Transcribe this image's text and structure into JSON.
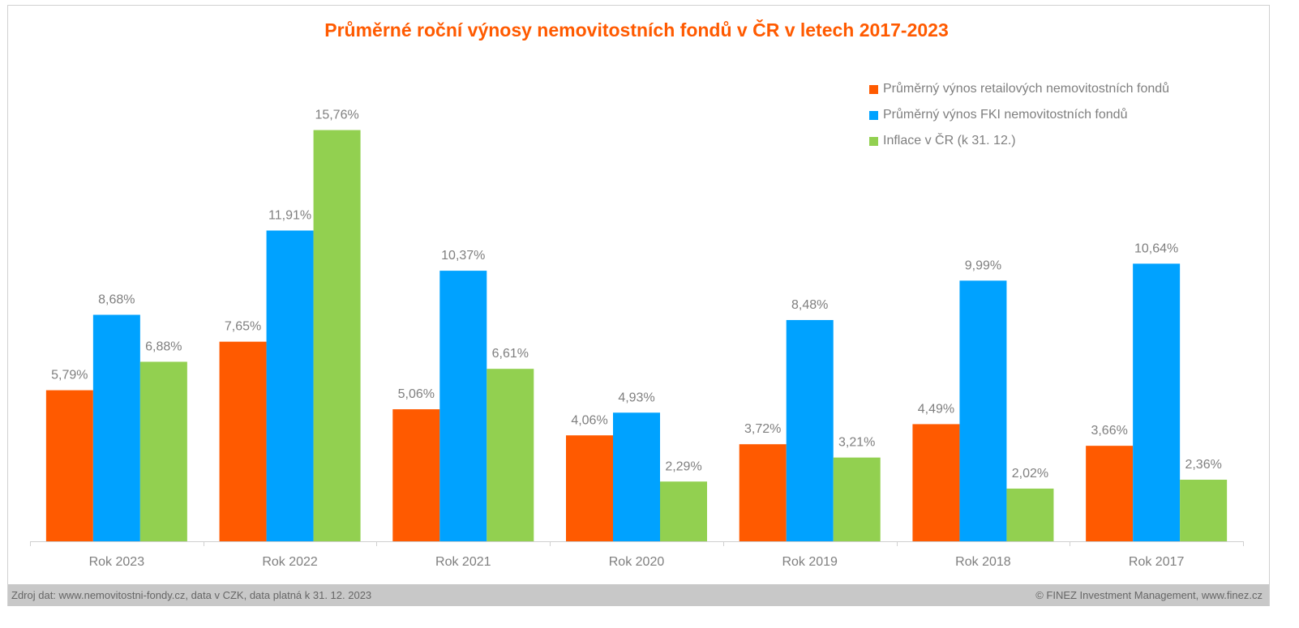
{
  "chart_data": {
    "type": "bar",
    "title": "Průměrné roční výnosy nemovitostních fondů v ČR v letech 2017-2023",
    "categories": [
      "Rok 2023",
      "Rok 2022",
      "Rok 2021",
      "Rok 2020",
      "Rok 2019",
      "Rok 2018",
      "Rok 2017"
    ],
    "series": [
      {
        "name": "Průměrný výnos retailových nemovitostních fondů",
        "color": "#ff5a00",
        "values": [
          5.79,
          7.65,
          5.06,
          4.06,
          3.72,
          4.49,
          3.66
        ],
        "labels": [
          "5,79%",
          "7,65%",
          "5,06%",
          "4,06%",
          "3,72%",
          "4,49%",
          "3,66%"
        ]
      },
      {
        "name": "Průměrný výnos FKI nemovitostních fondů",
        "color": "#00a2ff",
        "values": [
          8.68,
          11.91,
          10.37,
          4.93,
          8.48,
          9.99,
          10.64
        ],
        "labels": [
          "8,68%",
          "11,91%",
          "10,37%",
          "4,93%",
          "8,48%",
          "9,99%",
          "10,64%"
        ]
      },
      {
        "name": "Inflace v ČR (k 31. 12.)",
        "color": "#92d050",
        "values": [
          6.88,
          15.76,
          6.61,
          2.29,
          3.21,
          2.02,
          2.36
        ],
        "labels": [
          "6,88%",
          "15,76%",
          "6,61%",
          "2,29%",
          "3,21%",
          "2,02%",
          "2,36%"
        ]
      }
    ],
    "ylabel": "",
    "xlabel": "",
    "ylim": [
      0,
      16
    ],
    "grid": false,
    "legend_position": "top-right"
  },
  "footer": {
    "source": "Zdroj dat: www.nemovitostni-fondy.cz, data v CZK, data platná k 31. 12. 2023",
    "credit": "© FINEZ Investment Management, www.finez.cz"
  }
}
